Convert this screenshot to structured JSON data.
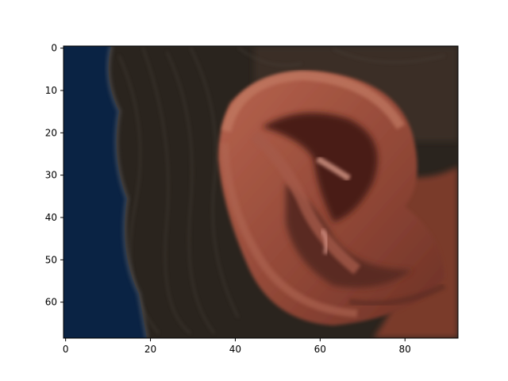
{
  "figure": {
    "type": "image-plot",
    "content_description_icon": "ear-photo",
    "colors": {
      "background": "#ffffff",
      "axis": "#000000",
      "sky_blue": "#0a2344",
      "hair_dark": "#2a241e",
      "skin": "#9a4f3c",
      "skin_highlight": "#c98270",
      "skin_shadow": "#5a2a20"
    }
  },
  "chart_data": {
    "type": "image",
    "title": "",
    "xlabel": "",
    "ylabel": "",
    "xlim": [
      -0.5,
      92.5
    ],
    "ylim": [
      68.5,
      -0.5
    ],
    "x_ticks": [
      0,
      20,
      40,
      60,
      80
    ],
    "y_ticks": [
      0,
      10,
      20,
      30,
      40,
      50,
      60
    ],
    "x_tick_labels": [
      "0",
      "20",
      "40",
      "60",
      "80"
    ],
    "y_tick_labels": [
      "0",
      "10",
      "20",
      "30",
      "40",
      "50",
      "60"
    ],
    "grid": false,
    "legend": "none"
  }
}
